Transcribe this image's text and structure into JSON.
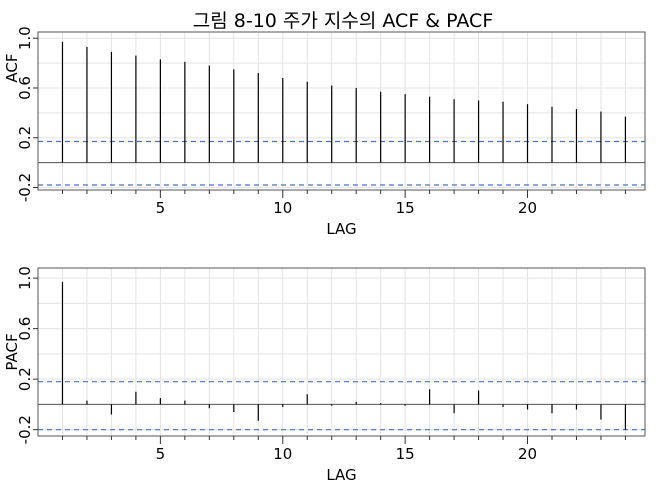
{
  "title": "그림 8-10 주가 지수의 ACF & PACF",
  "colors": {
    "bar": "#000000",
    "ci": "#4472c4",
    "grid": "#e3e3e3",
    "frame": "#555555",
    "zero": "#000000"
  },
  "chart_data": [
    {
      "type": "bar",
      "id": "acf",
      "ylabel": "ACF",
      "xlabel": "LAG",
      "xlim": [
        0,
        24.8
      ],
      "ylim": [
        -0.22,
        1.05
      ],
      "xticks": [
        5,
        10,
        15,
        20
      ],
      "xtick_labels": [
        "5",
        "10",
        "15",
        "20"
      ],
      "yticks": [
        -0.2,
        0.2,
        0.6,
        1.0
      ],
      "ytick_labels": [
        "-0.2",
        "0.2",
        "0.6",
        "1.0"
      ],
      "grid": true,
      "confidence_band": [
        -0.18,
        0.17
      ],
      "x": [
        1,
        2,
        3,
        4,
        5,
        6,
        7,
        8,
        9,
        10,
        11,
        12,
        13,
        14,
        15,
        16,
        17,
        18,
        19,
        20,
        21,
        22,
        23,
        24
      ],
      "values": [
        0.97,
        0.93,
        0.89,
        0.86,
        0.83,
        0.81,
        0.78,
        0.75,
        0.72,
        0.68,
        0.65,
        0.62,
        0.6,
        0.57,
        0.55,
        0.53,
        0.51,
        0.5,
        0.49,
        0.47,
        0.45,
        0.43,
        0.41,
        0.37
      ]
    },
    {
      "type": "bar",
      "id": "pacf",
      "ylabel": "PACF",
      "xlabel": "LAG",
      "xlim": [
        0,
        24.8
      ],
      "ylim": [
        -0.25,
        1.08
      ],
      "xticks": [
        5,
        10,
        15,
        20
      ],
      "xtick_labels": [
        "5",
        "10",
        "15",
        "20"
      ],
      "yticks": [
        -0.2,
        0.2,
        0.6,
        1.0
      ],
      "ytick_labels": [
        "-0.2",
        "0.2",
        "0.6",
        "1.0"
      ],
      "grid": true,
      "confidence_band": [
        -0.2,
        0.18
      ],
      "x": [
        1,
        2,
        3,
        4,
        5,
        6,
        7,
        8,
        9,
        10,
        11,
        12,
        13,
        14,
        15,
        16,
        17,
        18,
        19,
        20,
        21,
        22,
        23,
        24
      ],
      "values": [
        0.97,
        0.03,
        -0.08,
        0.1,
        0.05,
        0.03,
        -0.03,
        -0.06,
        -0.13,
        -0.02,
        0.08,
        -0.01,
        0.02,
        0.01,
        -0.01,
        0.12,
        -0.07,
        0.11,
        -0.02,
        -0.04,
        -0.07,
        -0.04,
        -0.12,
        -0.2
      ]
    }
  ]
}
